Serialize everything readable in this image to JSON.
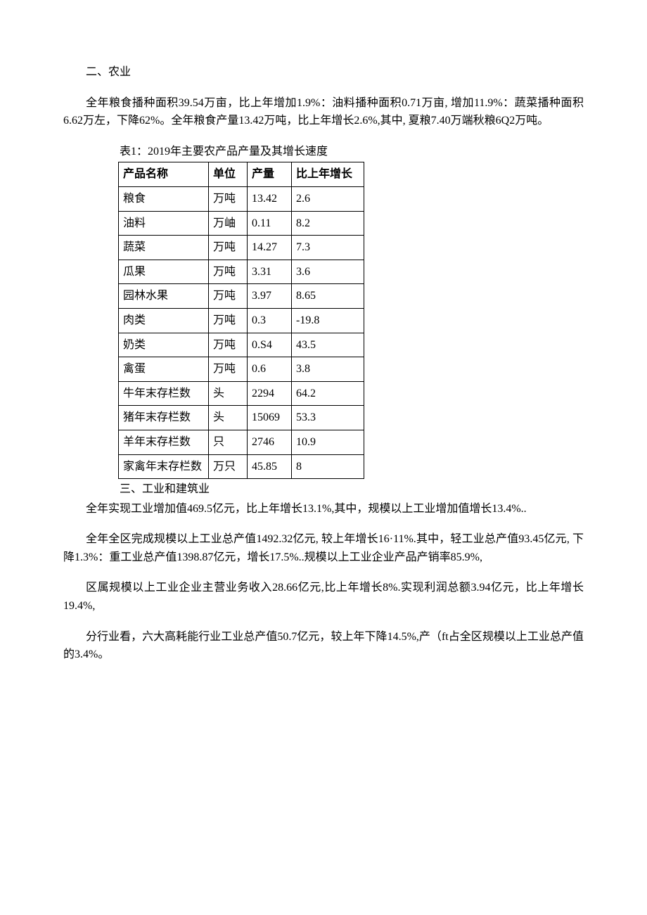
{
  "section2": {
    "title": "二、农业",
    "para1": "全年粮食播种面积39.54万亩，比上年增加1.9%：油料播种面积0.71万亩, 增加11.9%：蔬菜播种面积6.62万左，下降62%。全年粮食产量13.42万吨，比上年增长2.6%,其中, 夏粮7.40万端秋粮6Q2万吨。",
    "table_caption": "表1：2019年主要农产品产量及其增长速度",
    "headers": {
      "name": "产品名称",
      "unit": "单位",
      "output": "产量",
      "growth": "比上年增长"
    },
    "rows": [
      {
        "name": "粮食",
        "unit": "万吨",
        "output": "13.42",
        "growth": "2.6"
      },
      {
        "name": "油料",
        "unit": "万岫",
        "output": "0.11",
        "growth": "8.2"
      },
      {
        "name": "蔬菜",
        "unit": "万吨",
        "output": "14.27",
        "growth": "7.3"
      },
      {
        "name": "瓜果",
        "unit": "万吨",
        "output": "3.31",
        "growth": "3.6"
      },
      {
        "name": "园林水果",
        "unit": "万吨",
        "output": "3.97",
        "growth": "8.65"
      },
      {
        "name": "肉类",
        "unit": "万吨",
        "output": "0.3",
        "growth": "-19.8"
      },
      {
        "name": "奶类",
        "unit": "万吨",
        "output": "0.S4",
        "growth": "43.5"
      },
      {
        "name": "禽蛋",
        "unit": "万吨",
        "output": "0.6",
        "growth": "3.8"
      },
      {
        "name": "牛年末存栏数",
        "unit": "头",
        "output": "2294",
        "growth": "64.2"
      },
      {
        "name": "猪年末存栏数",
        "unit": "头",
        "output": "15069",
        "growth": "53.3"
      },
      {
        "name": "羊年末存栏数",
        "unit": "只",
        "output": "2746",
        "growth": "10.9"
      },
      {
        "name": "家禽年末存栏数",
        "unit": "万只",
        "output": "45.85",
        "growth": "8"
      }
    ]
  },
  "section3": {
    "title": "三、工业和建筑业",
    "para1": "全年实现工业增加值469.5亿元，比上年增长13.1%,其中，规模以上工业增加值增长13.4%..",
    "para2": "全年全区完成规模以上工业总产值1492.32亿元, 较上年增长16·11%.其中，轻工业总产值93.45亿元, 下降1.3%：重工业总产值1398.87亿元，增长17.5%..规模以上工业企业产品产销率85.9%,",
    "para3": "区属规模以上工业企业主营业务收入28.66亿元,比上年增长8%.实现利润总额3.94亿元，比上年增长19.4%,",
    "para4": "分行业看，六大高耗能行业工业总产值50.7亿元，较上年下降14.5%,产（ft占全区规模以上工业总产值的3.4%。"
  }
}
